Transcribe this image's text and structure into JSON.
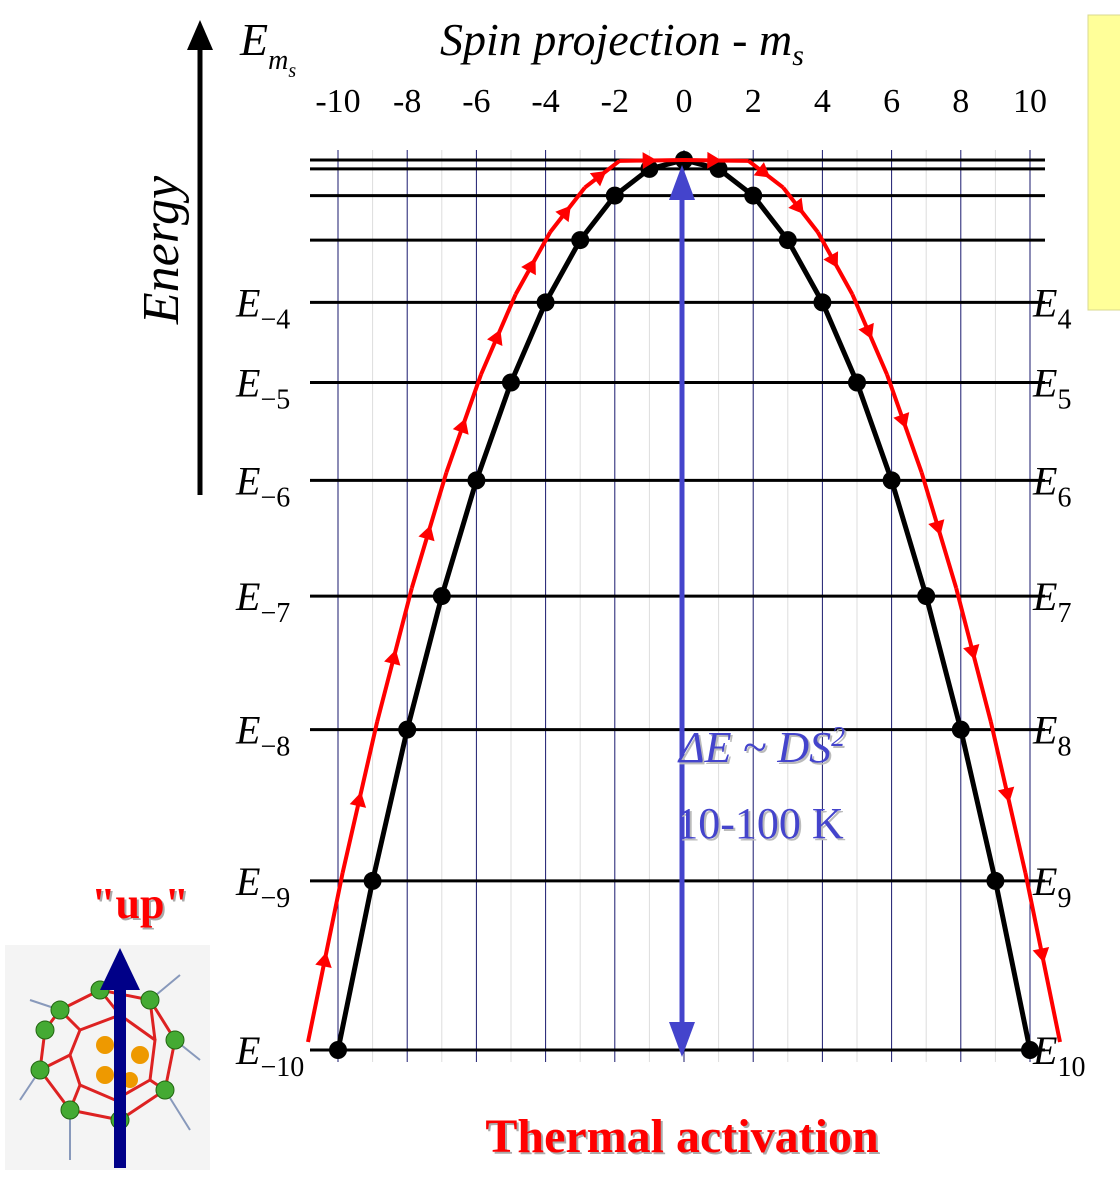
{
  "chart_data": {
    "type": "line",
    "title": "Spin projection - m",
    "title_sub": "s",
    "y_label": "Energy",
    "axis_symbol": "E",
    "axis_symbol_sub": "m",
    "axis_symbol_subsub": "s",
    "x": [
      -10,
      -9,
      -8,
      -7,
      -6,
      -5,
      -4,
      -3,
      -2,
      -1,
      0,
      1,
      2,
      3,
      4,
      5,
      6,
      7,
      8,
      9,
      10
    ],
    "values": [
      -100,
      -81,
      -64,
      -49,
      -36,
      -25,
      -16,
      -9,
      -4,
      -1,
      0,
      -1,
      -4,
      -9,
      -16,
      -25,
      -36,
      -49,
      -64,
      -81,
      -100
    ],
    "color": "#000000",
    "path_color": "#ff0000",
    "xlim": [
      -10,
      10
    ],
    "xticks": [
      -10,
      -8,
      -6,
      -4,
      -2,
      0,
      2,
      4,
      6,
      8,
      10
    ],
    "ylim": [
      -100,
      0
    ],
    "levels": {
      "symbol": "E",
      "m": [
        4,
        5,
        6,
        7,
        8,
        9,
        10
      ],
      "left_sub": [
        "−4",
        "−5",
        "−6",
        "−7",
        "−8",
        "−9",
        "−10"
      ],
      "right_sub": [
        "4",
        "5",
        "6",
        "7",
        "8",
        "9",
        "10"
      ]
    },
    "annotations": {
      "barrier": "ΔE ~ DS",
      "barrier_sup": "2",
      "range": "10-100 K",
      "process": "Thermal activation",
      "state": "\"up\""
    }
  }
}
